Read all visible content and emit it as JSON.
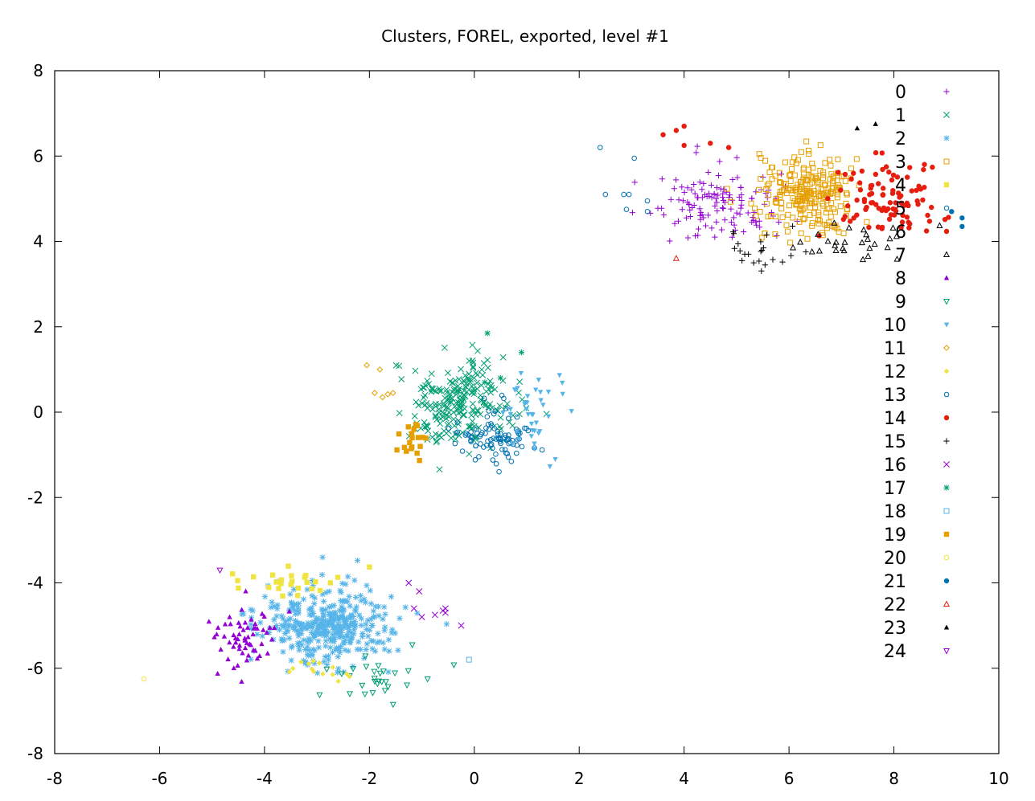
{
  "chart_data": {
    "type": "scatter",
    "title": "Clusters, FOREL, exported, level #1",
    "xlabel": "",
    "ylabel": "",
    "xlim": [
      -8,
      10
    ],
    "ylim": [
      -8,
      8
    ],
    "xticks": [
      -8,
      -6,
      -4,
      -2,
      0,
      2,
      4,
      6,
      8,
      10
    ],
    "yticks": [
      -8,
      -6,
      -4,
      -2,
      0,
      2,
      4,
      6,
      8
    ],
    "grid": false,
    "legend_position": "top-right",
    "series": [
      {
        "name": "0",
        "color": "#9400d3",
        "marker": "plus",
        "center": [
          4.6,
          4.9
        ],
        "spread": [
          0.55,
          0.45
        ],
        "n": 130,
        "seed": 11
      },
      {
        "name": "1",
        "color": "#009e73",
        "marker": "x",
        "center": [
          -0.3,
          0.2
        ],
        "spread": [
          0.55,
          0.5
        ],
        "n": 230,
        "seed": 12
      },
      {
        "name": "2",
        "color": "#56b4e9",
        "marker": "star",
        "center": [
          -2.8,
          -5.0
        ],
        "spread": [
          0.65,
          0.45
        ],
        "n": 380,
        "seed": 13
      },
      {
        "name": "3",
        "color": "#e69f00",
        "marker": "square",
        "center": [
          6.3,
          5.1
        ],
        "spread": [
          0.5,
          0.45
        ],
        "n": 240,
        "seed": 14
      },
      {
        "name": "4",
        "color": "#f0e442",
        "marker": "square-filled",
        "center": [
          -3.6,
          -4.0
        ],
        "spread": [
          0.55,
          0.2
        ],
        "n": 26,
        "seed": 15
      },
      {
        "name": "5",
        "color": "#0072b2",
        "marker": "circle",
        "center": [
          0.4,
          -0.6
        ],
        "spread": [
          0.35,
          0.35
        ],
        "n": 95,
        "seed": 16
      },
      {
        "name": "6",
        "color": "#e51e10",
        "marker": "circle-filled",
        "center": [
          7.9,
          5.0
        ],
        "spread": [
          0.45,
          0.45
        ],
        "n": 95,
        "seed": 17
      },
      {
        "name": "7",
        "color": "#000000",
        "marker": "triangle",
        "center": [
          7.2,
          3.9
        ],
        "spread": [
          0.6,
          0.25
        ],
        "n": 28,
        "seed": 18
      },
      {
        "name": "8",
        "color": "#9400d3",
        "marker": "triangle-filled",
        "center": [
          -4.4,
          -5.3
        ],
        "spread": [
          0.35,
          0.4
        ],
        "n": 60,
        "seed": 19
      },
      {
        "name": "9",
        "color": "#009e73",
        "marker": "triangle-down",
        "center": [
          -1.9,
          -6.1
        ],
        "spread": [
          0.5,
          0.3
        ],
        "n": 30,
        "seed": 20
      },
      {
        "name": "10",
        "color": "#56b4e9",
        "marker": "triangle-down-filled",
        "center": [
          1.1,
          0.0
        ],
        "spread": [
          0.3,
          0.45
        ],
        "n": 40,
        "seed": 21
      },
      {
        "name": "11",
        "color": "#e69f00",
        "marker": "diamond",
        "points": [
          [
            -2.05,
            1.1
          ],
          [
            -1.8,
            1.0
          ],
          [
            -1.9,
            0.45
          ],
          [
            -1.75,
            0.35
          ],
          [
            -1.65,
            0.42
          ],
          [
            -1.55,
            0.45
          ]
        ]
      },
      {
        "name": "12",
        "color": "#f0e442",
        "marker": "diamond-filled",
        "center": [
          -3.2,
          -6.1
        ],
        "spread": [
          0.4,
          0.12
        ],
        "n": 14,
        "seed": 22
      },
      {
        "name": "13",
        "color": "#0072b2",
        "marker": "circle",
        "points": [
          [
            2.4,
            6.2
          ],
          [
            2.5,
            5.1
          ],
          [
            2.85,
            5.1
          ],
          [
            3.05,
            5.95
          ],
          [
            2.95,
            5.1
          ],
          [
            3.3,
            4.95
          ],
          [
            2.9,
            4.75
          ],
          [
            3.3,
            4.7
          ]
        ]
      },
      {
        "name": "14",
        "color": "#e51e10",
        "marker": "circle-filled",
        "points": [
          [
            3.85,
            6.6
          ],
          [
            4.0,
            6.7
          ],
          [
            3.6,
            6.5
          ],
          [
            4.0,
            6.25
          ],
          [
            4.5,
            6.3
          ],
          [
            4.85,
            6.2
          ]
        ]
      },
      {
        "name": "15",
        "color": "#000000",
        "marker": "plus",
        "center": [
          5.6,
          3.8
        ],
        "spread": [
          0.45,
          0.3
        ],
        "n": 22,
        "seed": 23
      },
      {
        "name": "16",
        "color": "#9400d3",
        "marker": "x",
        "points": [
          [
            -1.25,
            -4.0
          ],
          [
            -1.05,
            -4.2
          ],
          [
            -1.15,
            -4.6
          ],
          [
            -1.0,
            -4.8
          ],
          [
            -0.75,
            -4.75
          ],
          [
            -0.6,
            -4.65
          ],
          [
            -0.55,
            -4.6
          ],
          [
            -0.25,
            -5.0
          ],
          [
            -0.55,
            -4.7
          ]
        ]
      },
      {
        "name": "17",
        "color": "#009e73",
        "marker": "star",
        "points": [
          [
            0.25,
            1.85
          ],
          [
            0.9,
            1.4
          ],
          [
            0.2,
            0.7
          ],
          [
            -0.3,
            0.5
          ],
          [
            0.5,
            0.8
          ],
          [
            -0.2,
            0.3
          ]
        ]
      },
      {
        "name": "18",
        "color": "#56b4e9",
        "marker": "square",
        "points": [
          [
            -0.1,
            -5.8
          ]
        ]
      },
      {
        "name": "19",
        "color": "#e69f00",
        "marker": "square-filled",
        "center": [
          -1.15,
          -0.6
        ],
        "spread": [
          0.18,
          0.25
        ],
        "n": 20,
        "seed": 24
      },
      {
        "name": "20",
        "color": "#f0e442",
        "marker": "circle",
        "points": [
          [
            -6.3,
            -6.25
          ]
        ]
      },
      {
        "name": "21",
        "color": "#0072b2",
        "marker": "circle-filled",
        "points": [
          [
            9.1,
            4.7
          ],
          [
            9.3,
            4.55
          ],
          [
            9.3,
            4.35
          ]
        ]
      },
      {
        "name": "22",
        "color": "#e51e10",
        "marker": "triangle",
        "points": [
          [
            3.85,
            3.6
          ]
        ]
      },
      {
        "name": "23",
        "color": "#000000",
        "marker": "triangle-filled",
        "points": [
          [
            7.3,
            6.65
          ],
          [
            7.65,
            6.75
          ]
        ]
      },
      {
        "name": "24",
        "color": "#9400d3",
        "marker": "triangle-down",
        "points": [
          [
            -4.85,
            -3.7
          ]
        ]
      }
    ]
  }
}
